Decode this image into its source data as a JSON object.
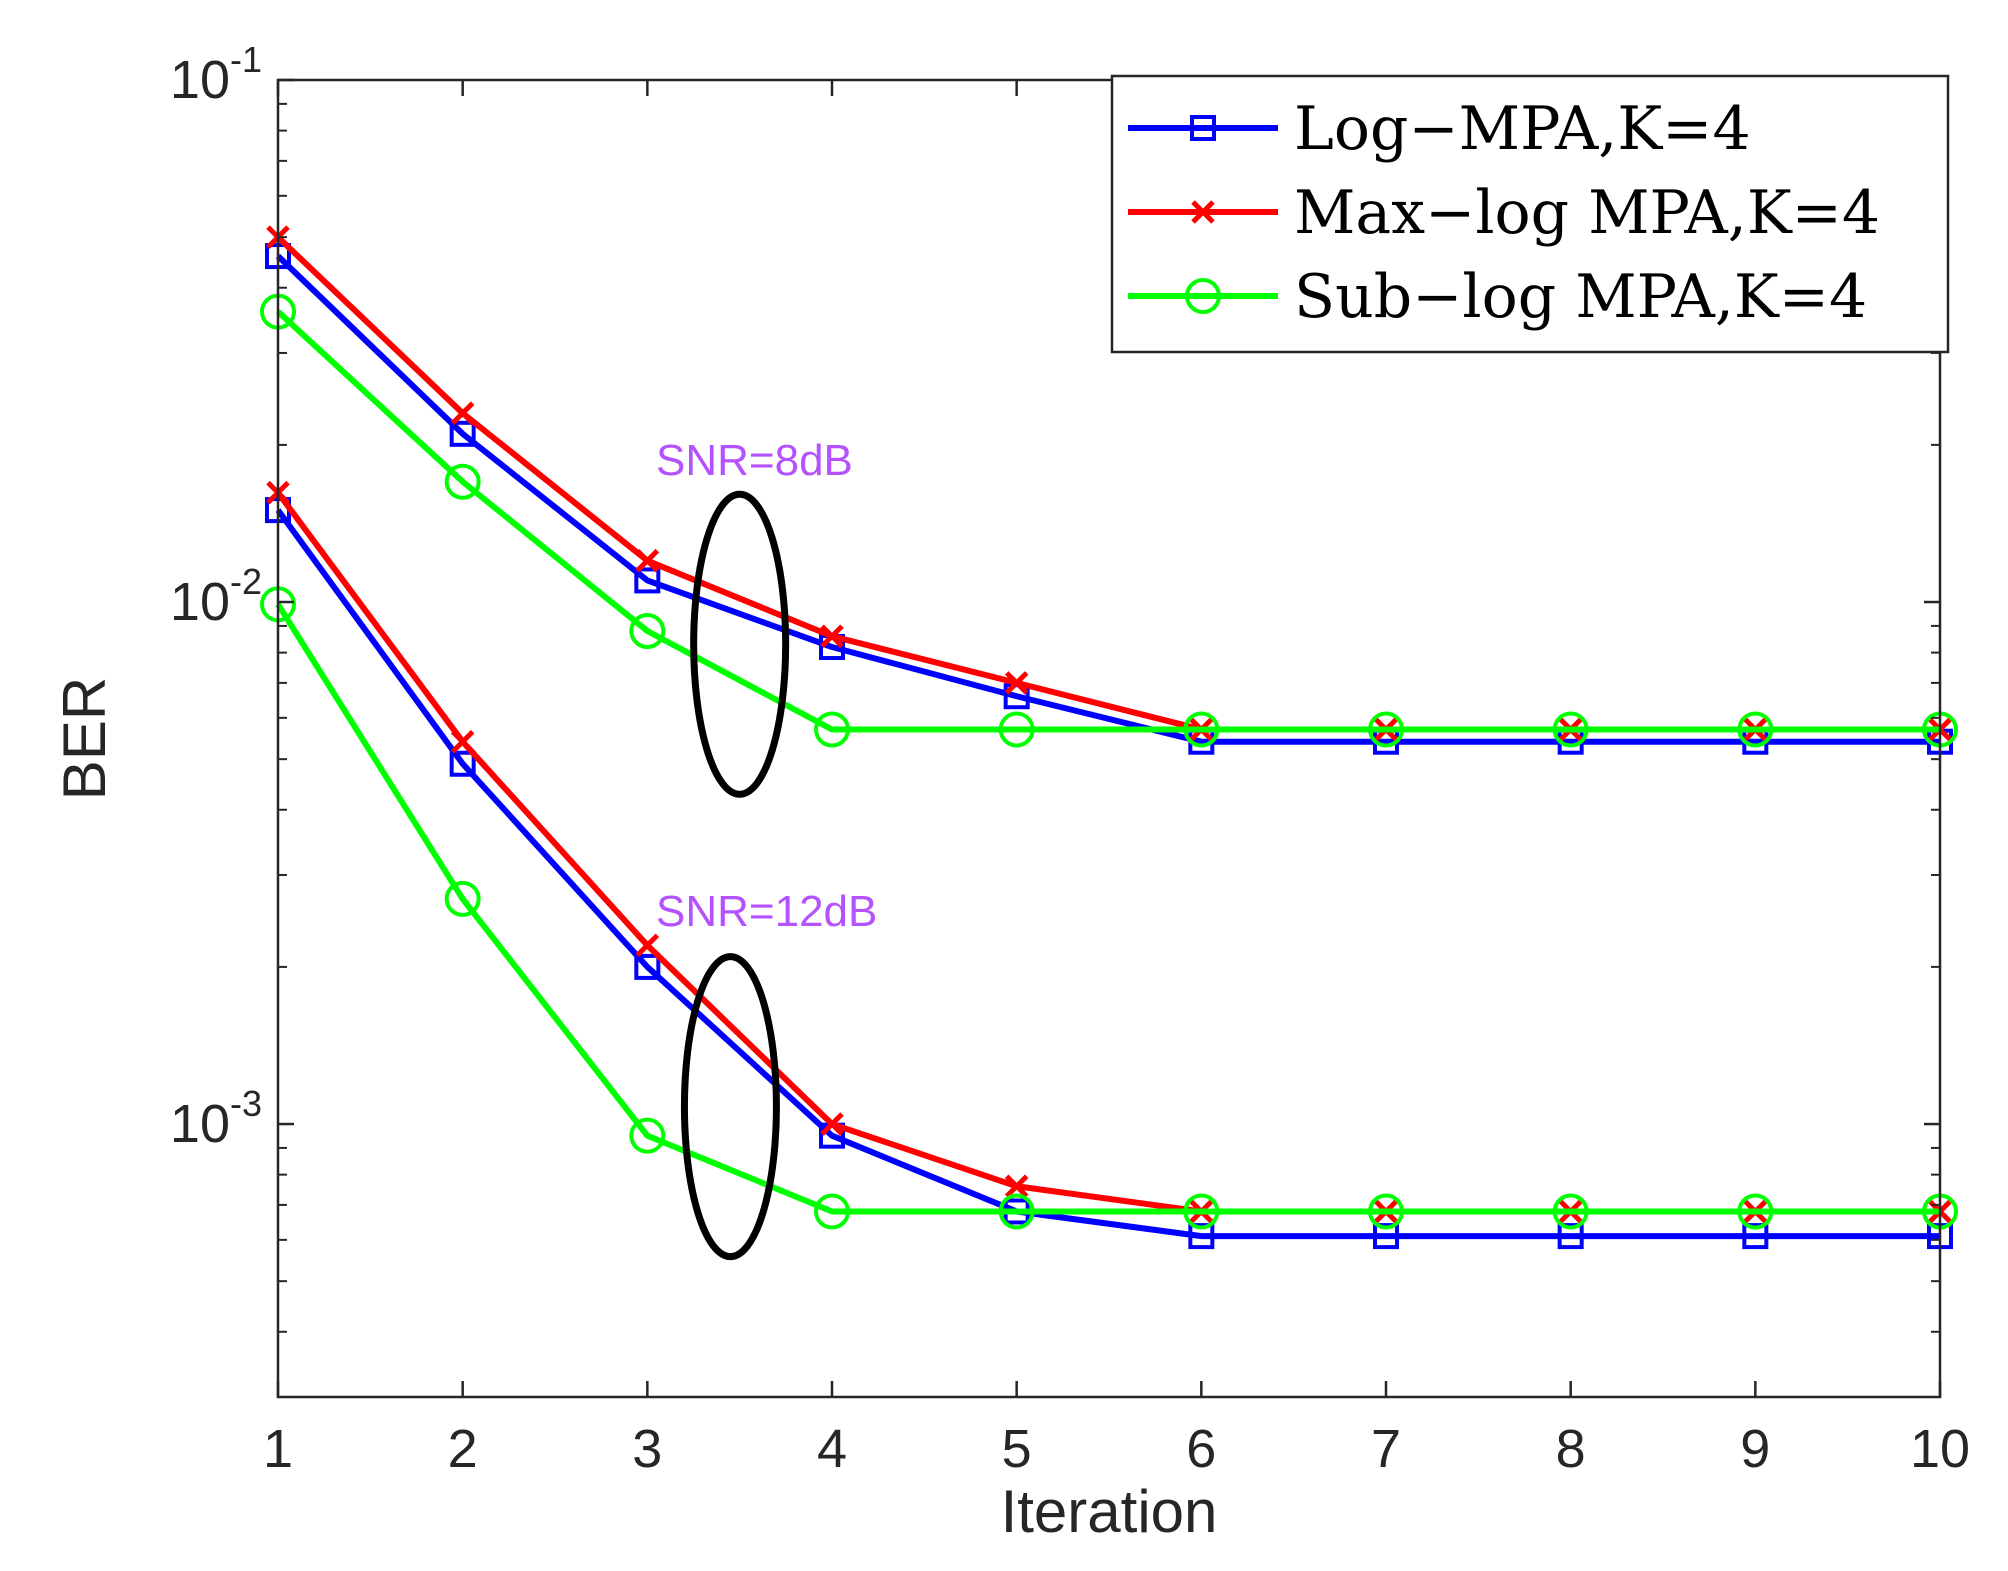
{
  "chart_data": {
    "type": "line",
    "xlabel": "Iteration",
    "ylabel": "BER",
    "x": [
      1,
      2,
      3,
      4,
      5,
      6,
      7,
      8,
      9,
      10
    ],
    "xlim": [
      1,
      10
    ],
    "ylim": [
      0.0003,
      0.1
    ],
    "yscale": "log",
    "x_ticks": [
      "1",
      "2",
      "3",
      "4",
      "5",
      "6",
      "7",
      "8",
      "9",
      "10"
    ],
    "y_ticks": [
      {
        "value": 0.1,
        "base": "10",
        "exp": "-1"
      },
      {
        "value": 0.01,
        "base": "10",
        "exp": "-2"
      },
      {
        "value": 0.001,
        "base": "10",
        "exp": "-3"
      }
    ],
    "grid": false,
    "legend_position": "top-right",
    "groups": [
      {
        "label": "SNR=8dB",
        "series": [
          {
            "name": "Log−MPA,K=4",
            "color": "#0000ff",
            "marker": "square",
            "values": [
              0.046,
              0.021,
              0.011,
              0.0082,
              0.0066,
              0.0054,
              0.0054,
              0.0054,
              0.0054,
              0.0054
            ]
          },
          {
            "name": "Max−log MPA,K=4",
            "color": "#ff0000",
            "marker": "x",
            "values": [
              0.05,
              0.023,
              0.012,
              0.0086,
              0.007,
              0.0057,
              0.0057,
              0.0057,
              0.0057,
              0.0057
            ]
          },
          {
            "name": "Sub−log MPA,K=4",
            "color": "#00ff00",
            "marker": "circle",
            "values": [
              0.036,
              0.017,
              0.0088,
              0.0057,
              0.0057,
              0.0057,
              0.0057,
              0.0057,
              0.0057,
              0.0057
            ]
          }
        ]
      },
      {
        "label": "SNR=12dB",
        "series": [
          {
            "name": "Log−MPA,K=4",
            "color": "#0000ff",
            "marker": "square",
            "values": [
              0.015,
              0.0049,
              0.002,
              0.00095,
              0.00068,
              0.00061,
              0.00061,
              0.00061,
              0.00061,
              0.00061
            ]
          },
          {
            "name": "Max−log MPA,K=4",
            "color": "#ff0000",
            "marker": "x",
            "values": [
              0.0162,
              0.0054,
              0.0022,
              0.001,
              0.00076,
              0.00068,
              0.00068,
              0.00068,
              0.00068,
              0.00068
            ]
          },
          {
            "name": "Sub−log MPA,K=4",
            "color": "#00ff00",
            "marker": "circle",
            "values": [
              0.0099,
              0.0027,
              0.00095,
              0.00068,
              0.00068,
              0.00068,
              0.00068,
              0.00068,
              0.00068,
              0.00068
            ]
          }
        ]
      }
    ],
    "legend": [
      {
        "label": "Log−MPA,K=4",
        "color": "#0000ff",
        "marker": "square"
      },
      {
        "label": "Max−log MPA,K=4",
        "color": "#ff0000",
        "marker": "x"
      },
      {
        "label": "Sub−log MPA,K=4",
        "color": "#00ff00",
        "marker": "circle"
      }
    ],
    "annotations": [
      {
        "text": "SNR=8dB",
        "color": "#b452ff"
      },
      {
        "text": "SNR=12dB",
        "color": "#b452ff"
      }
    ]
  }
}
